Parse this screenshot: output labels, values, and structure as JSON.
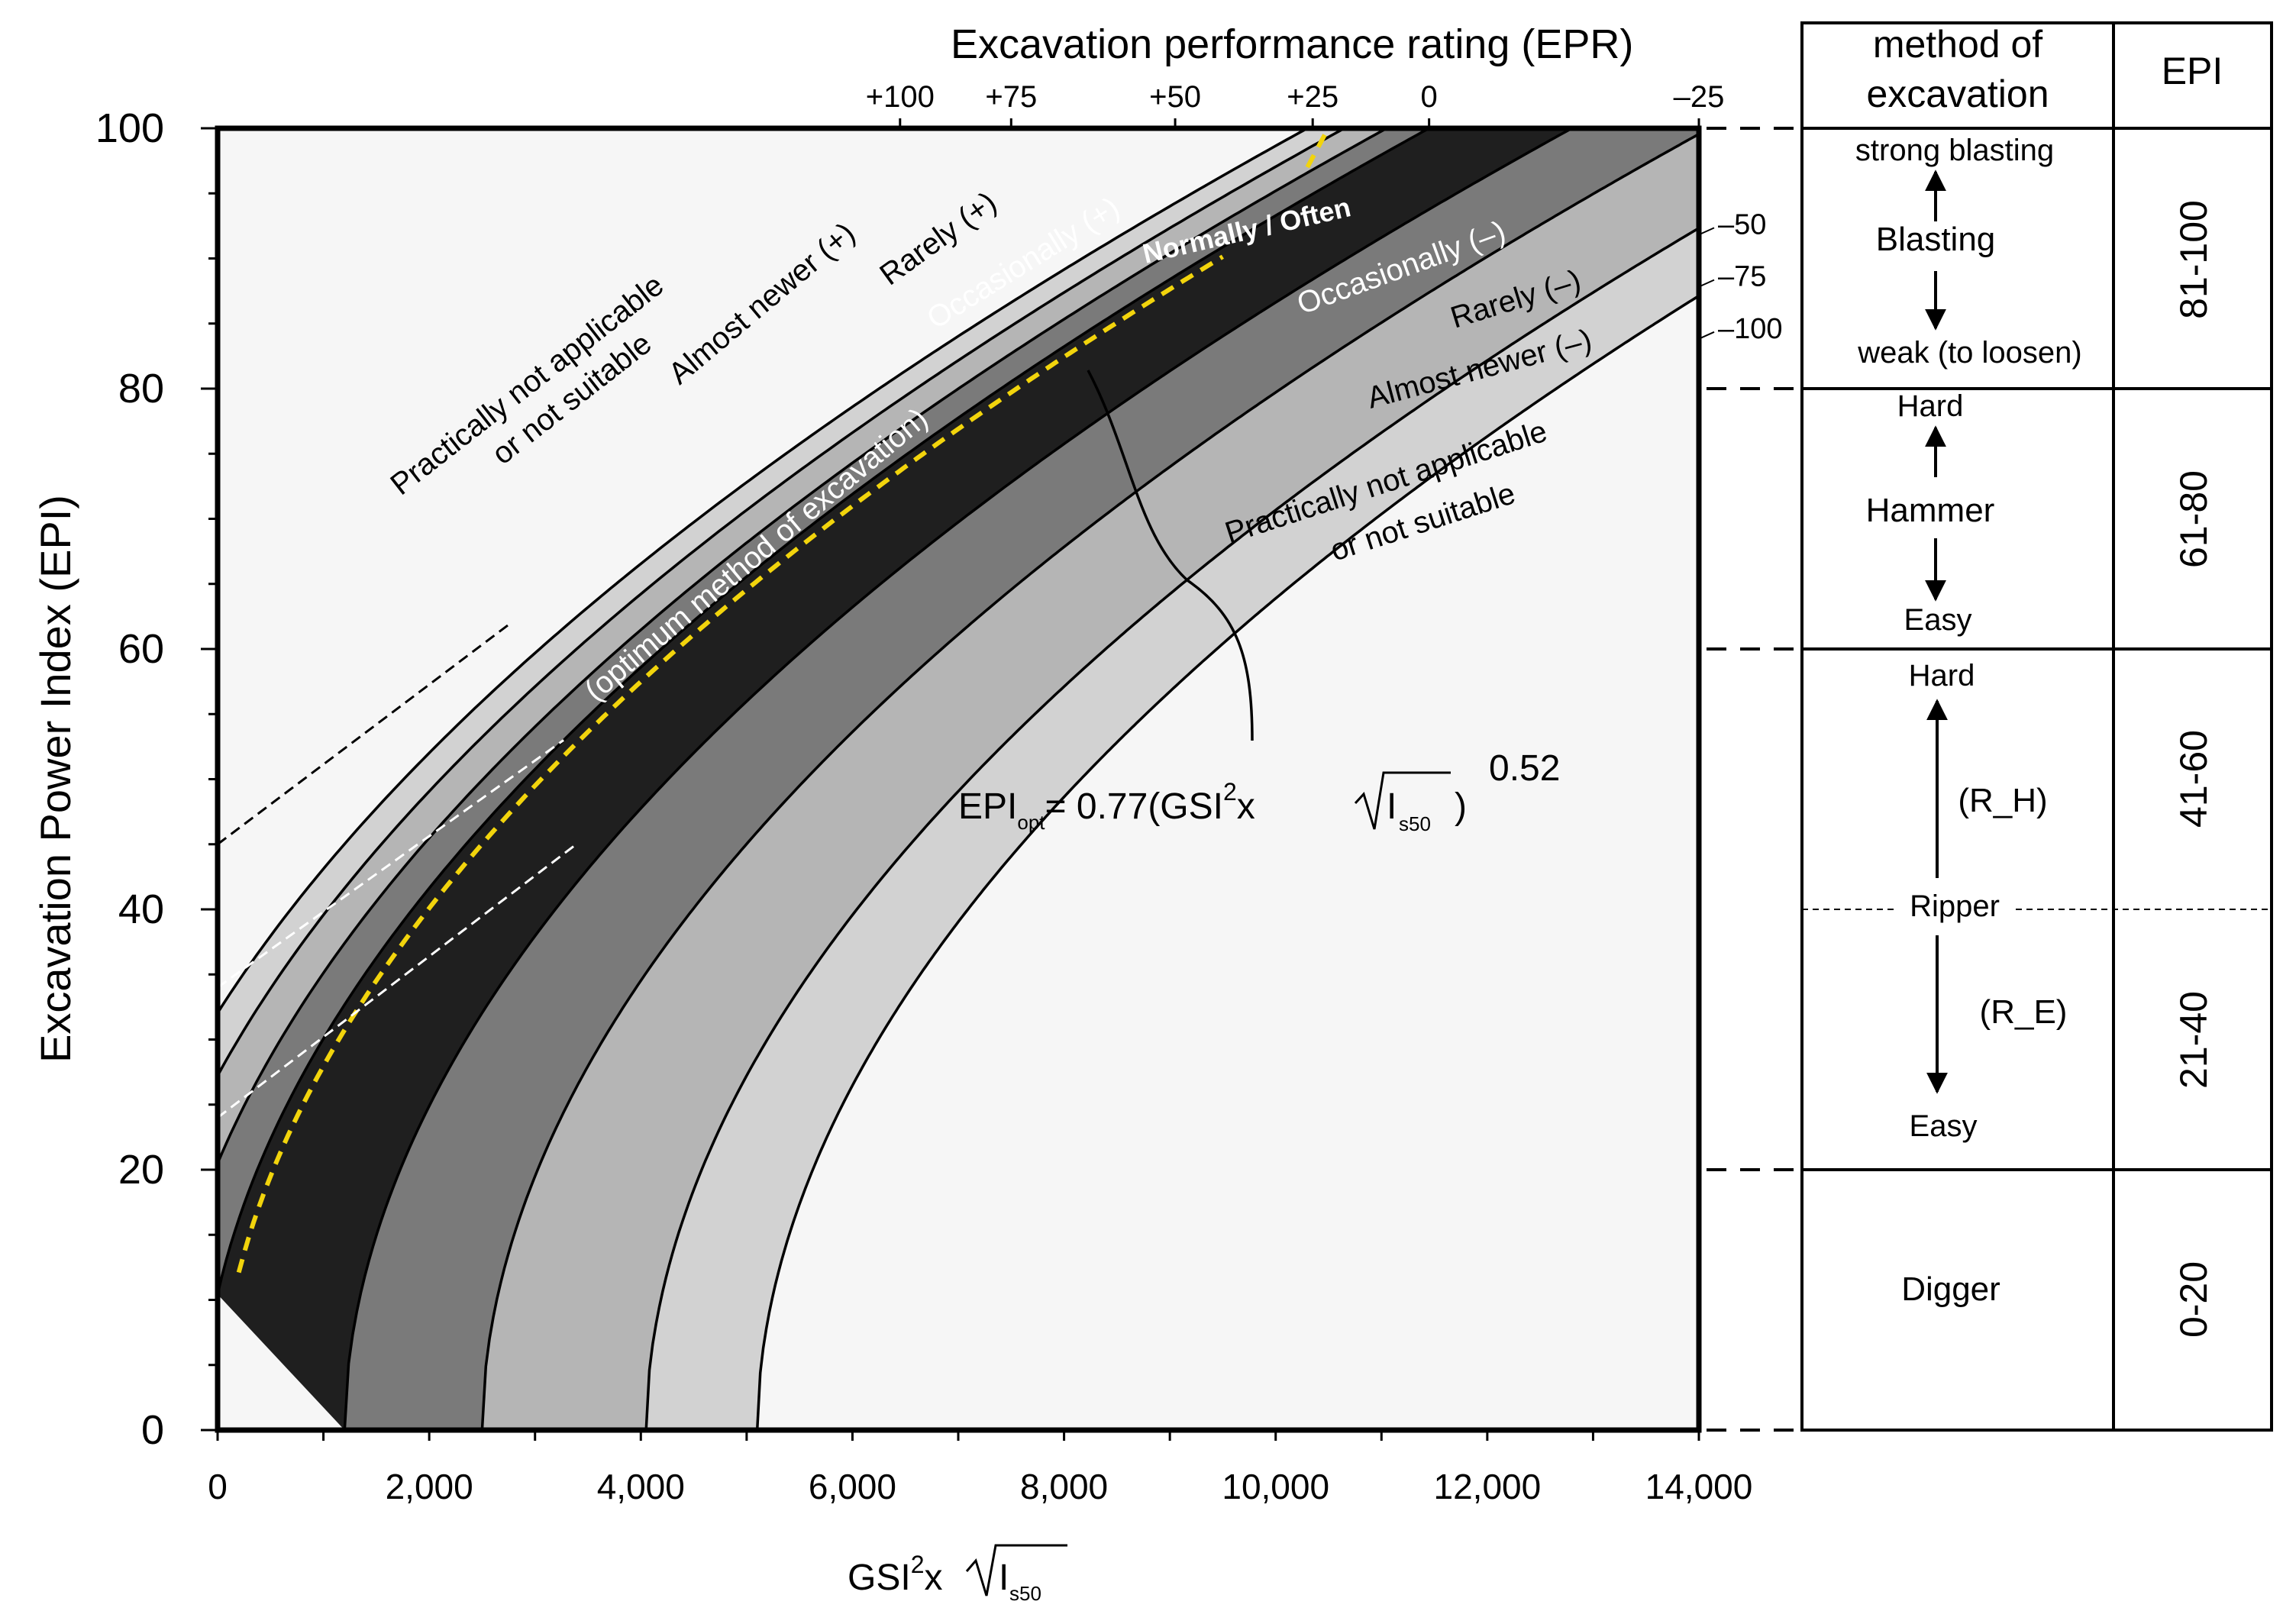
{
  "chart_data": {
    "type": "area",
    "title": "Excavation performance rating (EPR)",
    "xlabel_base": "GSI",
    "xlabel_sup": "2",
    "xlabel_mid": "x",
    "xlabel_sub": "s50",
    "xlabel_sqrt_arg": "I",
    "ylabel": "Excavation Power Index (EPI)",
    "xlim": [
      0,
      14000
    ],
    "ylim": [
      0,
      100
    ],
    "x_ticks": [
      "0",
      "2,000",
      "4,000",
      "6,000",
      "8,000",
      "10,000",
      "12,000",
      "14,000"
    ],
    "x_tick_values": [
      0,
      2000,
      4000,
      6000,
      8000,
      10000,
      12000,
      14000
    ],
    "y_ticks": [
      "0",
      "20",
      "40",
      "60",
      "80",
      "100"
    ],
    "y_tick_values": [
      0,
      20,
      40,
      60,
      80,
      100
    ],
    "formula": {
      "lhs": "EPI",
      "lhs_sub": "opt",
      "rhs": "= 0.77(GSI",
      "sup2": "2",
      "x": "x",
      "sqrt_arg": "I",
      "sqrt_sub": "s50",
      "close": ")",
      "exponent": "0.52"
    },
    "optimum_curve": {
      "coefficient": 0.77,
      "exponent": 0.52,
      "x_range": [
        200,
        9500
      ]
    },
    "epr_boundaries": [
      {
        "epr": "+100",
        "x_offset": -5100,
        "x_at_top": 6450
      },
      {
        "epr": "+75",
        "x_offset": -4050,
        "x_at_top": 7500
      },
      {
        "epr": "+50",
        "x_offset": -2500,
        "x_at_top": 9050
      },
      {
        "epr": "+25",
        "x_offset": -1200,
        "x_at_top": 10350
      },
      {
        "epr": "-25",
        "x_offset": 150
      },
      {
        "epr": "-50",
        "x_offset": 550
      },
      {
        "epr": "-75",
        "x_offset": 950
      },
      {
        "epr": "-100",
        "x_offset": 1300
      }
    ],
    "epr_zero": {
      "epr": "0",
      "x_at_top": 11450
    },
    "zones": [
      {
        "name": "Practically not applicable or not suitable (+)",
        "color": "#f6f6f6"
      },
      {
        "name": "Almost newer (+)",
        "color": "#d2d2d2"
      },
      {
        "name": "Rarely (+)",
        "color": "#b5b5b5"
      },
      {
        "name": "Occasionally (+)",
        "color": "#7a7a7a"
      },
      {
        "name": "Normally / Often",
        "color": "#1f1f1f"
      },
      {
        "name": "Occasionally (-)",
        "color": "#7a7a7a"
      },
      {
        "name": "Rarely (-)",
        "color": "#b5b5b5"
      },
      {
        "name": "Almost newer (-)",
        "color": "#d2d2d2"
      },
      {
        "name": "Practically not applicable or not suitable (-)",
        "color": "#f6f6f6"
      }
    ],
    "zone_labels": {
      "pna_top_1": "Practically not applicable",
      "pna_top_2": "or not suitable",
      "almost_plus": "Almost newer (+)",
      "rarely_plus": "Rarely (+)",
      "occasionally_plus": "Occasionally (+)",
      "normally": "Normally / Often",
      "optimum": "(optimum method of excavation)",
      "occasionally_minus": "Occasionally (–)",
      "rarely_minus": "Rarely (–)",
      "almost_minus": "Almost newer (–)",
      "pna_bottom_1": "Practically not applicable",
      "pna_bottom_2": "or not suitable"
    },
    "right_epr_labels": [
      "–50",
      "–75",
      "–100"
    ],
    "optimum_line_color": "#f2d40c"
  },
  "table": {
    "header_method_1": "method of",
    "header_method_2": "excavation",
    "header_epi": "EPI",
    "rows": [
      {
        "epi": "81-100",
        "top": "strong blasting",
        "middle": "Blasting",
        "bottom": "weak (to loosen)"
      },
      {
        "epi": "61-80",
        "top": "Hard",
        "middle": "Hammer",
        "bottom": "Easy"
      },
      {
        "epi": "41-60",
        "top": "Hard",
        "middle": "(R_H)"
      },
      {
        "epi": "21-40",
        "middle": "(R_E)",
        "bottom": "Easy"
      },
      {
        "epi": "0-20",
        "middle": "Digger"
      }
    ],
    "ripper_label": "Ripper"
  }
}
